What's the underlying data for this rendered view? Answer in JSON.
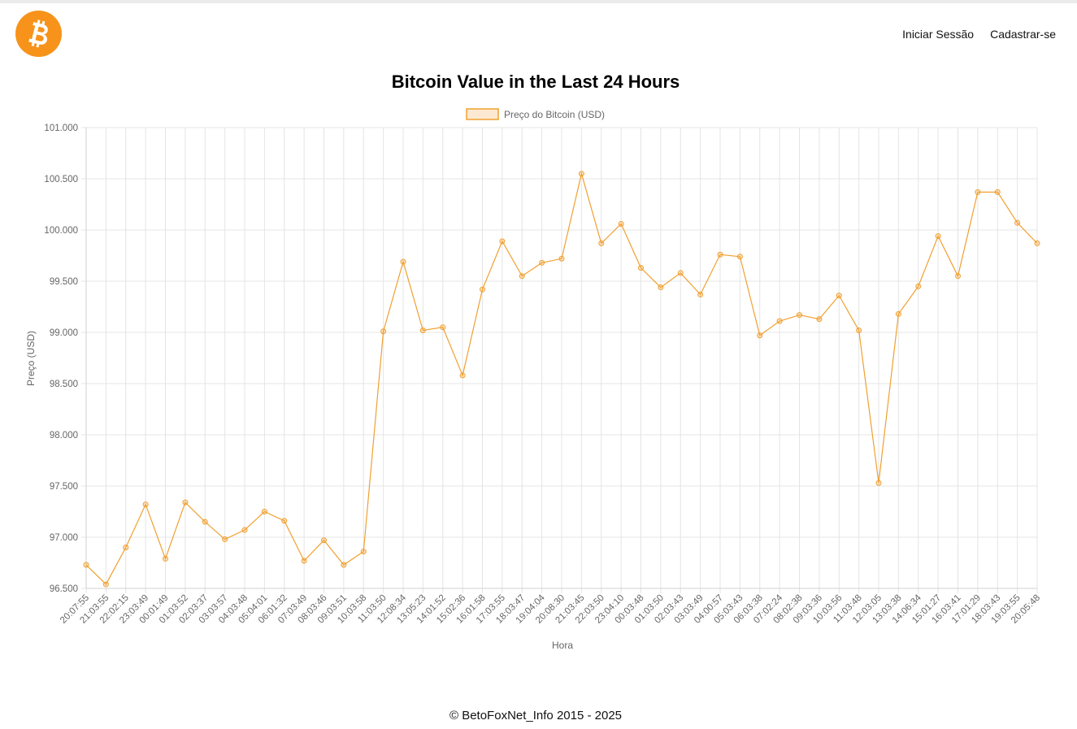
{
  "header": {
    "logo_icon": "bitcoin-logo-icon",
    "logo_color": "#f7931a",
    "login_label": "Iniciar Sessão",
    "signup_label": "Cadastrar-se"
  },
  "page_title": "Bitcoin Value in the Last 24 Hours",
  "footer": {
    "text": "© BetoFoxNet_Info 2015 - 2025"
  },
  "chart_data": {
    "type": "line",
    "legend_label": "Preço do Bitcoin (USD)",
    "legend_position": "top-center",
    "xlabel": "Hora",
    "ylabel": "Preço (USD)",
    "ylim": [
      96500,
      101000
    ],
    "ytick_labels": [
      "101.000",
      "100.500",
      "100.000",
      "99.500",
      "99.000",
      "98.500",
      "98.000",
      "97.500",
      "97.000",
      "96.500"
    ],
    "grid": true,
    "line_color": "#f0a030",
    "categories": [
      "20:07:55",
      "21:03:55",
      "22:02:15",
      "23:03:49",
      "00:01:49",
      "01:03:52",
      "02:03:37",
      "03:03:57",
      "04:03:48",
      "05:04:01",
      "06:01:32",
      "07:03:49",
      "08:03:46",
      "09:03:51",
      "10:03:58",
      "11:03:50",
      "12:08:34",
      "13:05:23",
      "14:01:52",
      "15:02:36",
      "16:01:58",
      "17:03:55",
      "18:03:47",
      "19:04:04",
      "20:08:30",
      "21:03:45",
      "22:03:50",
      "23:04:10",
      "00:03:48",
      "01:03:50",
      "02:03:43",
      "03:03:49",
      "04:00:57",
      "05:03:43",
      "06:03:38",
      "07:02:24",
      "08:02:38",
      "09:03:36",
      "10:03:56",
      "11:03:48",
      "12:03:05",
      "13:03:38",
      "14:06:34",
      "15:01:27",
      "16:03:41",
      "17:01:29",
      "18:03:43",
      "19:03:55",
      "20:05:48"
    ],
    "values": [
      96730,
      96540,
      96900,
      97320,
      96790,
      97340,
      97150,
      96980,
      97070,
      97250,
      97160,
      96770,
      96970,
      96730,
      96860,
      99010,
      99690,
      99020,
      99050,
      98580,
      99420,
      99890,
      99550,
      99680,
      99720,
      100550,
      99870,
      100060,
      99630,
      99440,
      99580,
      99370,
      99760,
      99740,
      98970,
      99110,
      99170,
      99130,
      99360,
      99020,
      97530,
      99180,
      99450,
      99940,
      99550,
      100370,
      100370,
      100070,
      99870
    ]
  }
}
